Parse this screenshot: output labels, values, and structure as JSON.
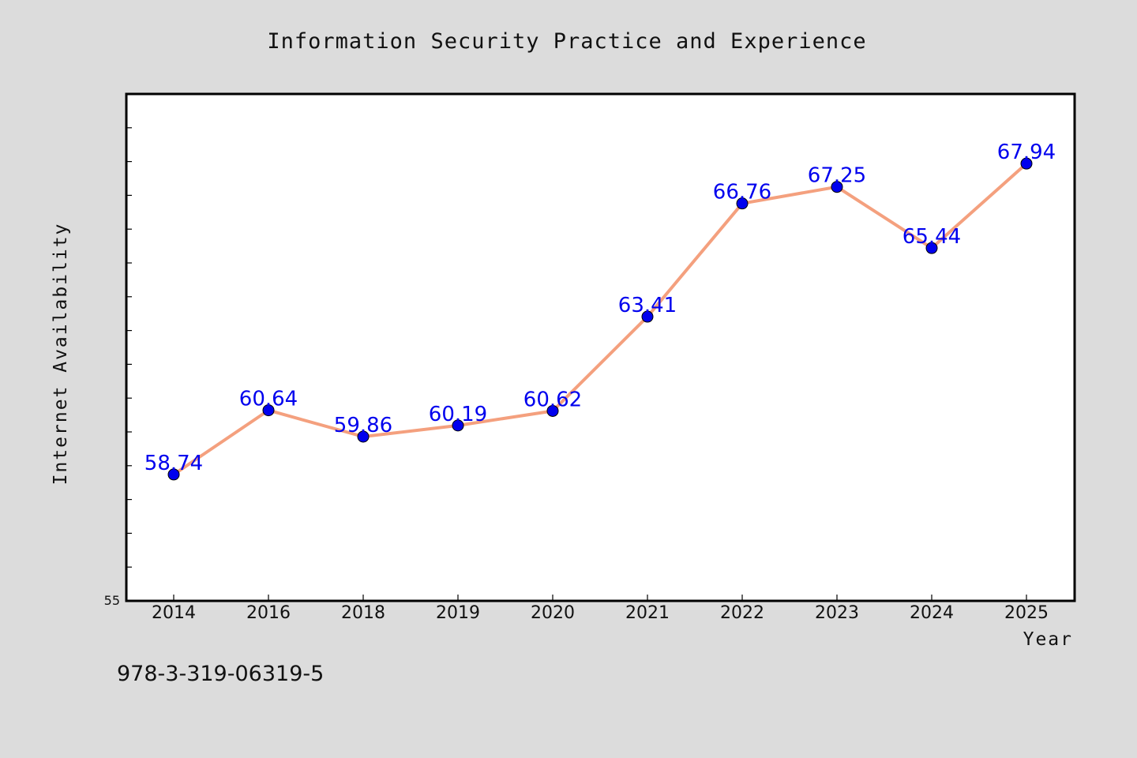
{
  "chart_data": {
    "type": "line",
    "title": "Information Security Practice and Experience",
    "xlabel": "Year",
    "ylabel": "Internet Availability",
    "categories": [
      "2014",
      "2016",
      "2018",
      "2019",
      "2020",
      "2021",
      "2022",
      "2023",
      "2024",
      "2025"
    ],
    "values": [
      58.74,
      60.64,
      59.86,
      60.19,
      60.62,
      63.41,
      66.76,
      67.25,
      65.44,
      67.94
    ],
    "data_labels": [
      "58.74",
      "60.64",
      "59.86",
      "60.19",
      "60.62",
      "63.41",
      "66.76",
      "67.25",
      "65.44",
      "67.94"
    ],
    "ylim": [
      55,
      70
    ],
    "y_tick_labels": [
      "55"
    ],
    "grid": false,
    "line_color": "#f4a07e",
    "marker_color": "#0000ee"
  },
  "footer": {
    "isbn": "978-3-319-06319-5"
  },
  "colors": {
    "background": "#dcdcdc",
    "plot_background": "#ffffff"
  }
}
